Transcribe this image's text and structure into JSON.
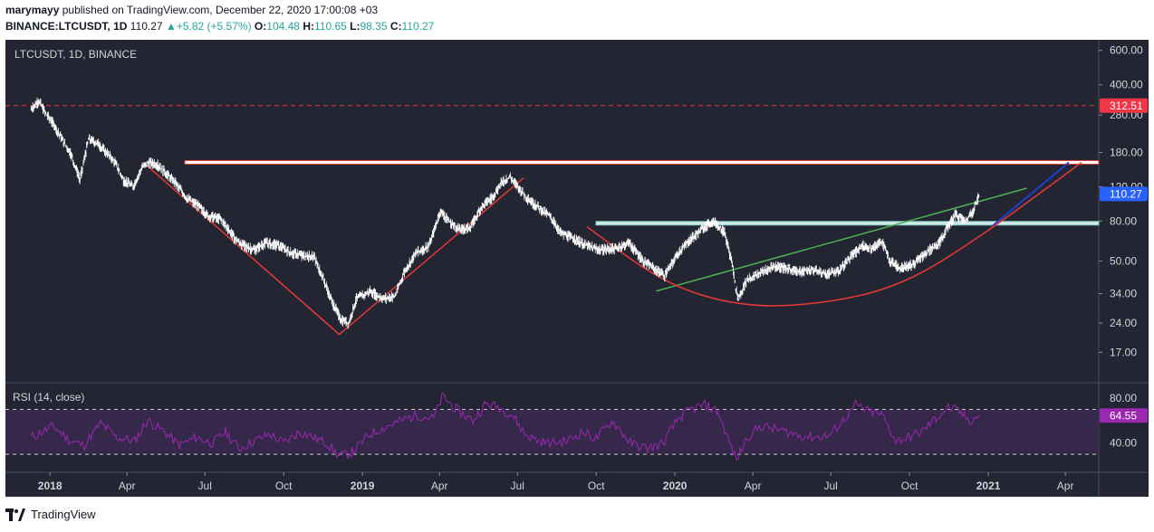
{
  "header": {
    "author": "marymayy",
    "published_text": "published on TradingView.com, December 22, 2020 17:00:08 +03",
    "symbol_line": "BINANCE:LTCUSDT, 1D",
    "last": "110.27",
    "change": "+5.82 (+5.57%)",
    "open_label": "O:",
    "open": "104.48",
    "high_label": "H:",
    "high": "110.65",
    "low_label": "L:",
    "low": "98.35",
    "close_label": "C:",
    "close": "110.27"
  },
  "footer": {
    "brand": "TradingView"
  },
  "colors": {
    "pane_bg": "#232632",
    "candle": "#ffffff",
    "resistance_line": "#e53935",
    "support_line": "#80cbc4",
    "trend_green": "#4caf50",
    "trend_blue": "#1e3fcf",
    "curve_red": "#e53935",
    "rsi_line": "#9c27b0",
    "rsi_band": "#3d2a55",
    "red_label_bg": "#f23645",
    "blue_label_bg": "#2962ff",
    "purple_label_bg": "#9c27b0"
  },
  "chart_data": [
    {
      "type": "line",
      "title": "LTCUSDT, 1D, BINANCE",
      "yscale": "log",
      "ylim": [
        12,
        680
      ],
      "y_ticks": [
        "600.00",
        "400.00",
        "280.00",
        "180.00",
        "120.00",
        "80.00",
        "50.00",
        "34.00",
        "24.00",
        "17.00"
      ],
      "y_tick_values": [
        600,
        400,
        280,
        180,
        120,
        80,
        50,
        34,
        24,
        17
      ],
      "x_ticks": [
        "2018",
        "Apr",
        "Jul",
        "Oct",
        "2019",
        "Apr",
        "Jul",
        "Oct",
        "2020",
        "Apr",
        "Jul",
        "Oct",
        "2021",
        "Apr"
      ],
      "x_tick_dates": [
        "2018-01-01",
        "2018-04-01",
        "2018-07-01",
        "2018-10-01",
        "2019-01-01",
        "2019-04-01",
        "2019-07-01",
        "2019-10-01",
        "2020-01-01",
        "2020-04-01",
        "2020-07-01",
        "2020-10-01",
        "2021-01-01",
        "2021-04-01"
      ],
      "xlim": [
        "2017-11-10",
        "2021-05-10"
      ],
      "series": [
        {
          "values_dates": [
            "2017-12-10",
            "2017-12-19",
            "2017-12-28",
            "2018-01-06",
            "2018-01-15",
            "2018-01-25",
            "2018-02-05",
            "2018-02-15",
            "2018-02-26",
            "2018-03-08",
            "2018-03-18",
            "2018-03-28",
            "2018-04-08",
            "2018-04-18",
            "2018-04-27",
            "2018-05-07",
            "2018-05-17",
            "2018-05-28",
            "2018-06-10",
            "2018-06-24",
            "2018-07-05",
            "2018-07-20",
            "2018-08-05",
            "2018-08-15",
            "2018-08-28",
            "2018-09-10",
            "2018-09-25",
            "2018-10-10",
            "2018-10-25",
            "2018-11-05",
            "2018-11-15",
            "2018-11-25",
            "2018-12-07",
            "2018-12-16",
            "2018-12-25",
            "2019-01-10",
            "2019-01-25",
            "2019-02-08",
            "2019-02-20",
            "2019-03-05",
            "2019-03-20",
            "2019-04-02",
            "2019-04-12",
            "2019-04-25",
            "2019-05-08",
            "2019-05-20",
            "2019-06-01",
            "2019-06-12",
            "2019-06-22",
            "2019-07-02",
            "2019-07-12",
            "2019-07-24",
            "2019-08-08",
            "2019-08-20",
            "2019-09-05",
            "2019-09-20",
            "2019-10-05",
            "2019-10-25",
            "2019-11-08",
            "2019-11-25",
            "2019-12-10",
            "2019-12-20",
            "2020-01-05",
            "2020-01-20",
            "2020-02-05",
            "2020-02-15",
            "2020-02-28",
            "2020-03-08",
            "2020-03-12",
            "2020-03-15",
            "2020-03-25",
            "2020-04-08",
            "2020-04-25",
            "2020-05-10",
            "2020-05-25",
            "2020-06-10",
            "2020-06-25",
            "2020-07-10",
            "2020-07-25",
            "2020-08-08",
            "2020-08-18",
            "2020-08-30",
            "2020-09-08",
            "2020-09-20",
            "2020-10-05",
            "2020-10-20",
            "2020-11-05",
            "2020-11-15",
            "2020-11-24",
            "2020-12-05",
            "2020-12-14",
            "2020-12-22"
          ],
          "values": [
            300,
            330,
            280,
            250,
            210,
            180,
            130,
            210,
            200,
            180,
            160,
            130,
            120,
            150,
            160,
            155,
            140,
            125,
            105,
            95,
            85,
            82,
            65,
            60,
            57,
            62,
            60,
            55,
            53,
            53,
            42,
            32,
            25,
            24,
            32,
            35,
            32,
            33,
            45,
            55,
            60,
            90,
            80,
            72,
            75,
            95,
            105,
            125,
            135,
            120,
            105,
            95,
            85,
            70,
            65,
            60,
            57,
            58,
            62,
            50,
            45,
            42,
            55,
            65,
            75,
            80,
            70,
            48,
            36,
            32,
            40,
            43,
            47,
            46,
            44,
            45,
            43,
            44,
            53,
            60,
            58,
            63,
            50,
            46,
            48,
            55,
            62,
            75,
            87,
            80,
            90,
            110.27
          ]
        }
      ],
      "price_labels": [
        {
          "text": "312.51",
          "value": 312.51,
          "kind": "red"
        },
        {
          "text": "110.27",
          "value": 110.27,
          "kind": "blue"
        }
      ],
      "horizontal_lines": [
        {
          "value": 312.51,
          "style": "dashed-red"
        },
        {
          "value": 160,
          "style": "red-band"
        },
        {
          "value": 78,
          "style": "teal-band"
        }
      ],
      "drawings": [
        {
          "type": "line",
          "color": "red",
          "points": [
            [
              "2018-04-20",
              160
            ],
            [
              "2018-12-05",
              21
            ],
            [
              "2019-07-08",
              133
            ]
          ]
        },
        {
          "type": "line",
          "color": "green",
          "points": [
            [
              "2019-12-10",
              35
            ],
            [
              "2021-02-15",
              118
            ]
          ]
        },
        {
          "type": "line",
          "color": "blue",
          "points": [
            [
              "2021-01-05",
              75
            ],
            [
              "2021-04-05",
              160
            ]
          ]
        },
        {
          "type": "curve",
          "color": "red",
          "points": [
            [
              "2019-09-20",
              75
            ],
            [
              "2019-12-20",
              38
            ],
            [
              "2020-03-20",
              29
            ],
            [
              "2020-06-20",
              30
            ],
            [
              "2020-09-20",
              37
            ],
            [
              "2020-12-20",
              65
            ],
            [
              "2021-04-20",
              160
            ]
          ]
        }
      ]
    },
    {
      "type": "line",
      "title": "RSI (14, close)",
      "ylim": [
        14,
        93
      ],
      "y_ticks": [
        "80.00",
        "40.00"
      ],
      "y_tick_values": [
        80,
        40
      ],
      "band": [
        30,
        70
      ],
      "last_label": "64.55",
      "series": [
        {
          "values_dates": [
            "2017-12-10",
            "2018-01-05",
            "2018-01-25",
            "2018-02-10",
            "2018-03-01",
            "2018-03-20",
            "2018-04-10",
            "2018-04-25",
            "2018-05-15",
            "2018-06-01",
            "2018-06-20",
            "2018-07-10",
            "2018-07-25",
            "2018-08-10",
            "2018-08-28",
            "2018-09-15",
            "2018-10-01",
            "2018-10-20",
            "2018-11-05",
            "2018-11-20",
            "2018-12-05",
            "2018-12-20",
            "2019-01-10",
            "2019-01-30",
            "2019-02-15",
            "2019-03-05",
            "2019-03-25",
            "2019-04-05",
            "2019-04-20",
            "2019-05-10",
            "2019-05-25",
            "2019-06-10",
            "2019-06-25",
            "2019-07-10",
            "2019-07-25",
            "2019-08-10",
            "2019-08-28",
            "2019-09-15",
            "2019-10-01",
            "2019-10-20",
            "2019-11-10",
            "2019-11-30",
            "2019-12-18",
            "2020-01-05",
            "2020-01-20",
            "2020-02-05",
            "2020-02-20",
            "2020-03-05",
            "2020-03-13",
            "2020-03-25",
            "2020-04-10",
            "2020-04-30",
            "2020-05-20",
            "2020-06-10",
            "2020-06-30",
            "2020-07-15",
            "2020-07-30",
            "2020-08-15",
            "2020-08-30",
            "2020-09-15",
            "2020-09-30",
            "2020-10-15",
            "2020-11-01",
            "2020-11-15",
            "2020-11-28",
            "2020-12-10",
            "2020-12-22"
          ],
          "values": [
            45,
            55,
            42,
            38,
            58,
            45,
            42,
            60,
            50,
            38,
            45,
            40,
            50,
            35,
            42,
            48,
            40,
            50,
            45,
            40,
            28,
            32,
            48,
            55,
            60,
            65,
            62,
            82,
            70,
            60,
            75,
            72,
            65,
            48,
            42,
            40,
            42,
            50,
            44,
            60,
            40,
            35,
            40,
            62,
            70,
            74,
            68,
            40,
            25,
            45,
            55,
            52,
            48,
            45,
            47,
            60,
            74,
            68,
            65,
            42,
            45,
            50,
            62,
            72,
            68,
            60,
            64.55
          ]
        }
      ]
    }
  ]
}
